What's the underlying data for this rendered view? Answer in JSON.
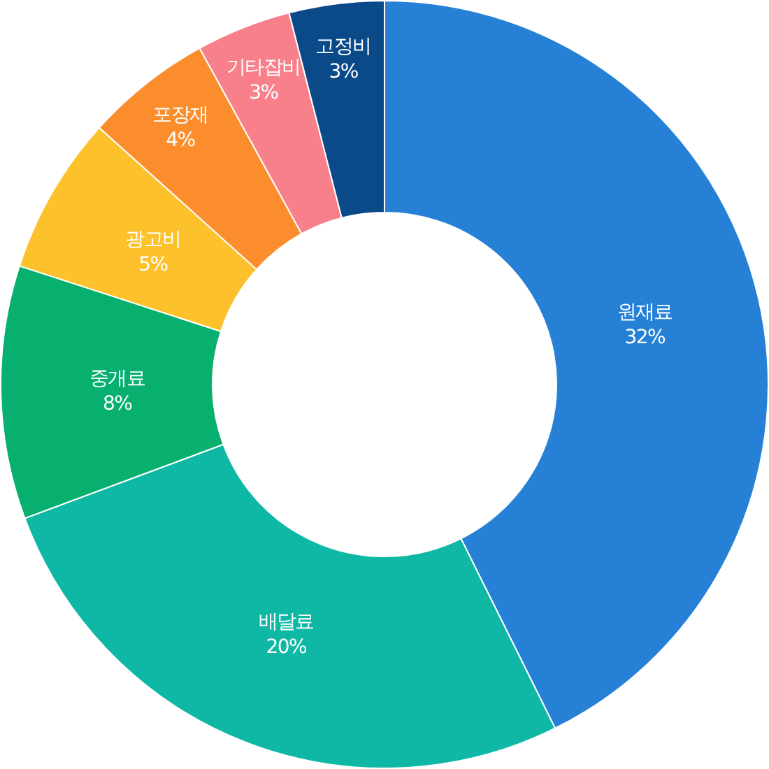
{
  "chart_data": {
    "type": "donut",
    "categories": [
      "원재료",
      "배달료",
      "중개료",
      "광고비",
      "포장재",
      "기타잡비",
      "고정비"
    ],
    "values": [
      32,
      20,
      8,
      5,
      4,
      3,
      3
    ],
    "value_labels": [
      "32%",
      "20%",
      "8%",
      "5%",
      "4%",
      "3%",
      "3%"
    ],
    "colors": [
      "#2681d6",
      "#0fb8a5",
      "#08b070",
      "#fcc12b",
      "#fb8d2c",
      "#f7808a",
      "#0b4a89"
    ]
  }
}
